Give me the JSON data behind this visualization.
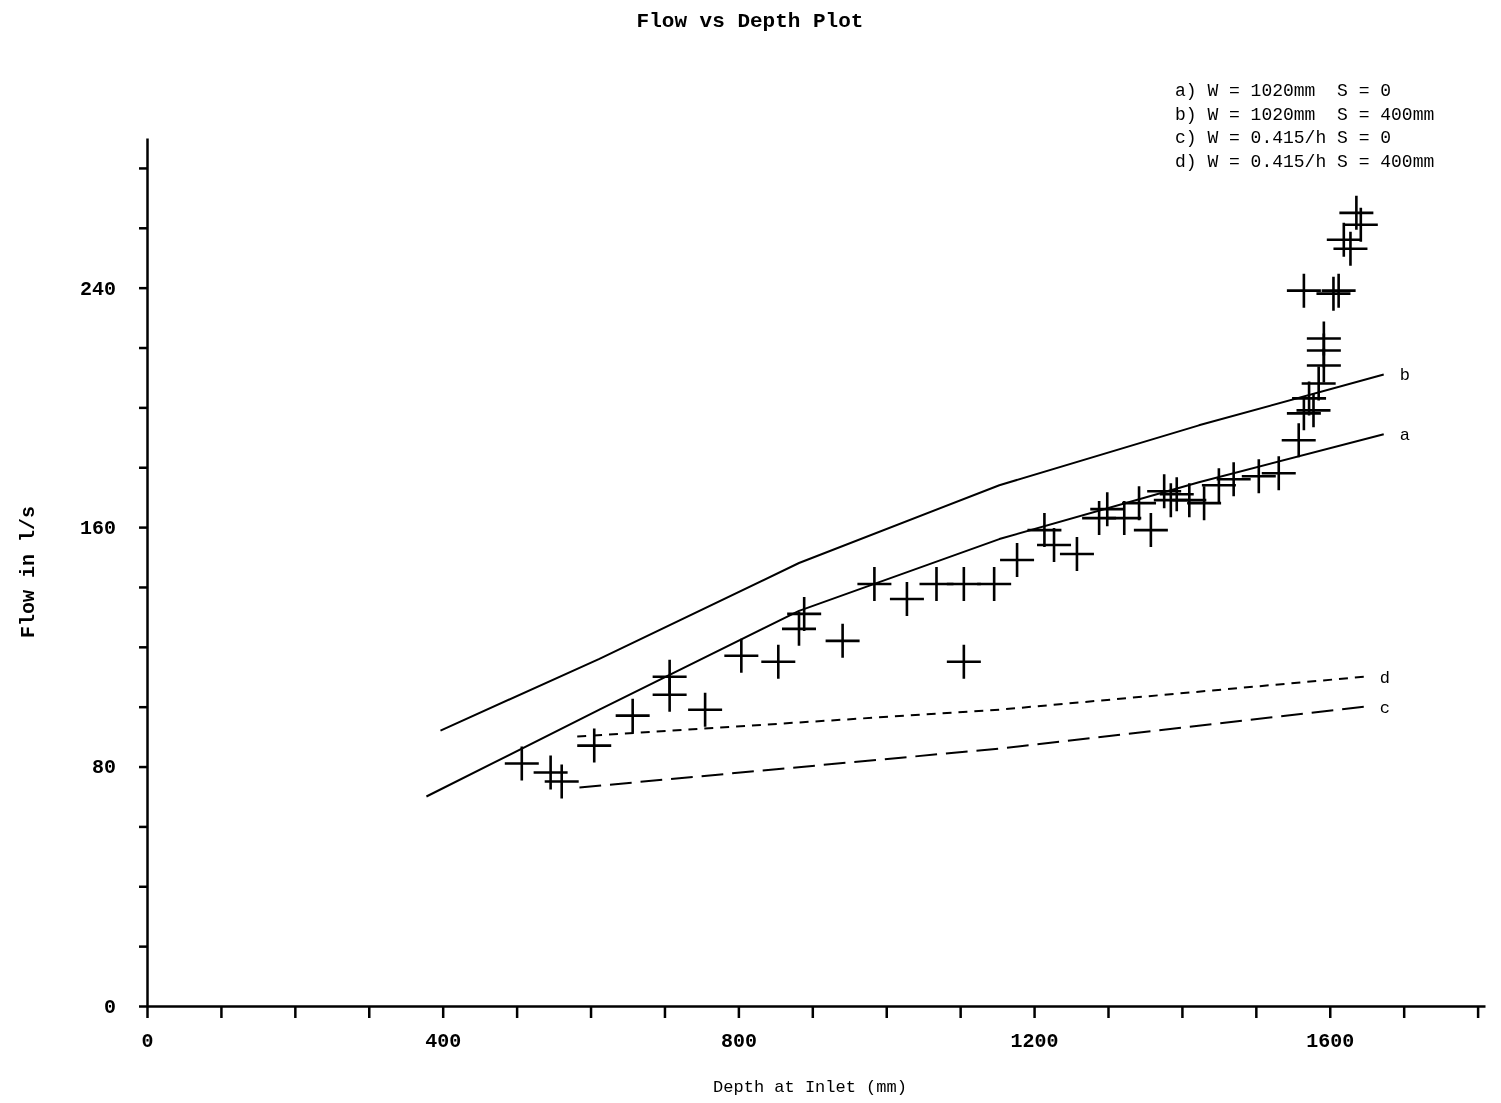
{
  "chart_data": {
    "type": "scatter",
    "title": "Flow vs Depth Plot",
    "xlabel": "Depth at Inlet (mm)",
    "ylabel": "Flow in l/s",
    "xlim": [
      0,
      1810
    ],
    "ylim": [
      0,
      290
    ],
    "xticks": [
      0,
      {
        "value": 100,
        "label": null
      },
      {
        "value": 200,
        "label": null
      },
      {
        "value": 300,
        "label": null
      },
      400,
      {
        "value": 500,
        "label": null
      },
      {
        "value": 600,
        "label": null
      },
      {
        "value": 700,
        "label": null
      },
      800,
      {
        "value": 900,
        "label": null
      },
      {
        "value": 1000,
        "label": null
      },
      {
        "value": 1100,
        "label": null
      },
      1200,
      {
        "value": 1300,
        "label": null
      },
      {
        "value": 1400,
        "label": null
      },
      {
        "value": 1500,
        "label": null
      },
      1600,
      {
        "value": 1700,
        "label": null
      },
      {
        "value": 1800,
        "label": null
      }
    ],
    "yticks": [
      0,
      {
        "value": 20,
        "label": null
      },
      {
        "value": 40,
        "label": null
      },
      {
        "value": 60,
        "label": null
      },
      80,
      {
        "value": 100,
        "label": null
      },
      {
        "value": 120,
        "label": null
      },
      {
        "value": 140,
        "label": null
      },
      160,
      {
        "value": 180,
        "label": null
      },
      {
        "value": 200,
        "label": null
      },
      {
        "value": 220,
        "label": null
      },
      240,
      {
        "value": 260,
        "label": null
      },
      {
        "value": 280,
        "label": null
      }
    ],
    "grid": false,
    "annotations": [
      "a) W = 1020mm  S = 0",
      "b) W = 1020mm  S = 400mm",
      "c) W = 0.415/h S = 0",
      "d) W = 0.415/h S = 400mm"
    ],
    "series": [
      {
        "color": "#000000",
        "marker": "cross",
        "x": [
          507,
          546,
          561,
          605,
          657,
          707,
          707,
          755,
          804,
          854,
          889,
          882,
          941,
          984,
          1028,
          1068,
          1105,
          1105,
          1146,
          1177,
          1214,
          1227,
          1258,
          1288,
          1299,
          1322,
          1342,
          1358,
          1376,
          1385,
          1393,
          1410,
          1430,
          1450,
          1470,
          1504,
          1531,
          1558,
          1565,
          1572,
          1578,
          1585,
          1592,
          1592,
          1592,
          1605,
          1612,
          1619,
          1628,
          1636,
          1642,
          1565
        ],
        "values": [
          81,
          78,
          75,
          87,
          97,
          110,
          104,
          99,
          117,
          115,
          131,
          126,
          122,
          141,
          136,
          141,
          141,
          115,
          141,
          149,
          159,
          154,
          151,
          163,
          166,
          163,
          168,
          159,
          172,
          169,
          171,
          169,
          168,
          174,
          176,
          177,
          178,
          189,
          198,
          203,
          199,
          208,
          219,
          214,
          223,
          238,
          239,
          256,
          253,
          265,
          261,
          239
        ]
      },
      {
        "type": "line",
        "name": "a",
        "color": "#000000",
        "marker": "none",
        "line_style": "solid",
        "x": [
          378,
          612,
          882,
          1153,
          1423,
          1673
        ],
        "values": [
          70,
          99,
          132,
          156,
          175,
          191
        ]
      },
      {
        "type": "line",
        "name": "b",
        "color": "#000000",
        "marker": "none",
        "line_style": "solid",
        "x": [
          397,
          612,
          882,
          1153,
          1423,
          1673
        ],
        "values": [
          92,
          116,
          148,
          174,
          194,
          211
        ]
      },
      {
        "type": "line",
        "name": "c",
        "color": "#000000",
        "marker": "none",
        "line_style": "dashed",
        "x": [
          585,
          1153,
          1646
        ],
        "values": [
          73,
          86,
          100
        ]
      },
      {
        "type": "line",
        "name": "d",
        "color": "#000000",
        "marker": "none",
        "line_style": "dotted",
        "x": [
          582,
          1153,
          1646
        ],
        "values": [
          90,
          99,
          110
        ]
      }
    ]
  }
}
